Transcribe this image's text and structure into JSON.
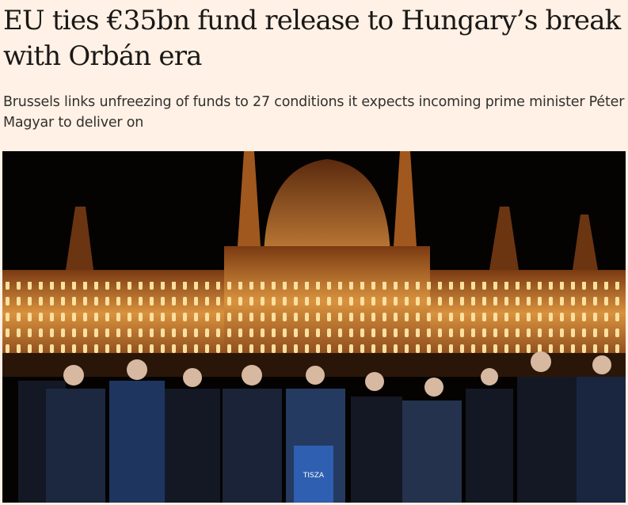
{
  "article": {
    "headline": "EU ties €35bn fund release to Hungary’s break with Orbán era",
    "standfirst": "Brussels links unfreezing of funds to 27 conditions it expects incoming prime minister Péter Magyar to deliver on",
    "image": {
      "podium_logo_text": "TISZA"
    }
  },
  "colors": {
    "background": "#fff1e5",
    "headline": "#1a1817",
    "standfirst": "#33302e",
    "podium": "#2f5fb0"
  }
}
